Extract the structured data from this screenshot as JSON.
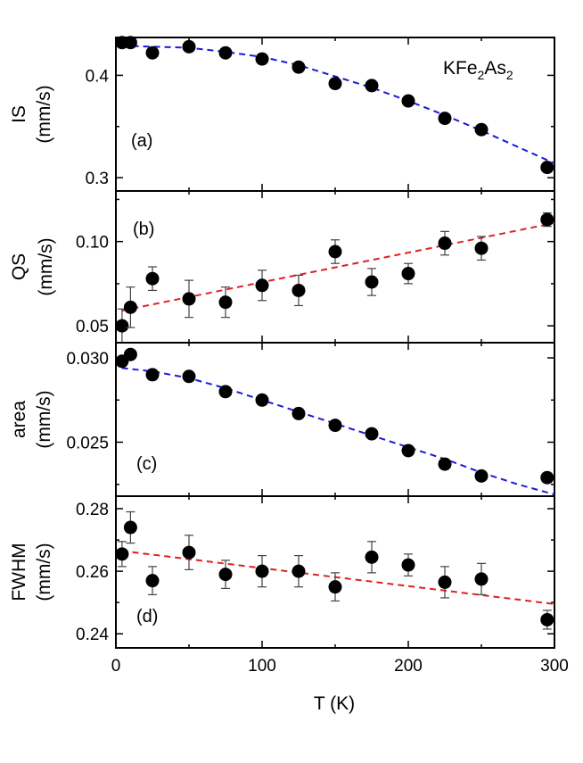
{
  "chart_data": {
    "type": "scatter",
    "shared_x": {
      "label": "T (K)",
      "lim": [
        0,
        300
      ],
      "ticks": [
        0,
        100,
        200,
        300
      ]
    },
    "annotation": {
      "base": "KFe",
      "sub1": "2",
      "mid": "As",
      "sub2": "2"
    },
    "panels": [
      {
        "tag": "(a)",
        "ylabel": [
          "IS",
          "(mm/s)"
        ],
        "ylim": [
          0.287,
          0.437
        ],
        "yticks": [
          0.3,
          0.4
        ],
        "yticklabels": [
          "0.3",
          "0.4"
        ],
        "fit_color": "#1a1adc",
        "x": [
          4.2,
          10,
          25,
          50,
          75,
          100,
          125,
          150,
          175,
          200,
          225,
          250,
          295
        ],
        "y": [
          0.432,
          0.432,
          0.422,
          0.428,
          0.422,
          0.416,
          0.408,
          0.392,
          0.39,
          0.375,
          0.358,
          0.347,
          0.31
        ],
        "err": [
          0,
          0,
          0,
          0,
          0,
          0,
          0,
          0,
          0,
          0,
          0,
          0,
          0
        ],
        "fit": {
          "x": [
            4,
            25,
            50,
            75,
            100,
            125,
            150,
            175,
            200,
            225,
            250,
            275,
            300
          ],
          "y": [
            0.429,
            0.428,
            0.427,
            0.423,
            0.418,
            0.41,
            0.399,
            0.388,
            0.375,
            0.361,
            0.346,
            0.33,
            0.314
          ]
        }
      },
      {
        "tag": "(b)",
        "ylabel": [
          "QS",
          "(mm/s)"
        ],
        "ylim": [
          0.04,
          0.13
        ],
        "yticks": [
          0.05,
          0.1
        ],
        "yticklabels": [
          "0.05",
          "0.10"
        ],
        "fit_color": "#e02020",
        "x": [
          4.2,
          10,
          25,
          50,
          75,
          100,
          125,
          150,
          175,
          200,
          225,
          250,
          295
        ],
        "y": [
          0.05,
          0.061,
          0.078,
          0.066,
          0.064,
          0.074,
          0.071,
          0.094,
          0.076,
          0.081,
          0.099,
          0.096,
          0.113
        ],
        "err": [
          0.01,
          0.012,
          0.007,
          0.011,
          0.009,
          0.009,
          0.009,
          0.007,
          0.008,
          0.006,
          0.007,
          0.007,
          0.004
        ],
        "fit": {
          "x": [
            4,
            300
          ],
          "y": [
            0.059,
            0.111
          ]
        }
      },
      {
        "tag": "(c)",
        "ylabel": [
          "area",
          "(mm/s)"
        ],
        "ylim": [
          0.0218,
          0.0309
        ],
        "yticks": [
          0.025,
          0.03
        ],
        "yticklabels": [
          "0.025",
          "0.030"
        ],
        "fit_color": "#1a1adc",
        "x": [
          4.2,
          10,
          25,
          50,
          75,
          100,
          125,
          150,
          175,
          200,
          225,
          250,
          295
        ],
        "y": [
          0.0298,
          0.0302,
          0.029,
          0.0289,
          0.028,
          0.0275,
          0.0267,
          0.026,
          0.0255,
          0.0245,
          0.0237,
          0.023,
          0.0229
        ],
        "err": [
          0,
          0,
          0,
          0,
          0,
          0,
          0,
          0,
          0,
          0,
          0,
          0,
          0
        ],
        "fit": {
          "x": [
            4,
            25,
            50,
            75,
            100,
            125,
            150,
            175,
            200,
            225,
            250,
            275,
            300
          ],
          "y": [
            0.0294,
            0.0292,
            0.0288,
            0.0282,
            0.0275,
            0.0268,
            0.0261,
            0.0254,
            0.0247,
            0.024,
            0.0232,
            0.0225,
            0.0219
          ]
        }
      },
      {
        "tag": "(d)",
        "ylabel": [
          "FWHM",
          "(mm/s)"
        ],
        "ylim": [
          0.2355,
          0.284
        ],
        "yticks": [
          0.24,
          0.26,
          0.28
        ],
        "yticklabels": [
          "0.24",
          "0.26",
          "0.28"
        ],
        "fit_color": "#e02020",
        "x": [
          4.2,
          10,
          25,
          50,
          75,
          100,
          125,
          150,
          175,
          200,
          225,
          250,
          295
        ],
        "y": [
          0.2655,
          0.274,
          0.257,
          0.266,
          0.259,
          0.26,
          0.26,
          0.255,
          0.2645,
          0.262,
          0.2565,
          0.2575,
          0.2445
        ],
        "err": [
          0.004,
          0.005,
          0.0045,
          0.0055,
          0.0045,
          0.005,
          0.005,
          0.0045,
          0.005,
          0.0035,
          0.005,
          0.005,
          0.003
        ],
        "fit": {
          "x": [
            4,
            300
          ],
          "y": [
            0.2665,
            0.2495
          ]
        }
      }
    ]
  }
}
